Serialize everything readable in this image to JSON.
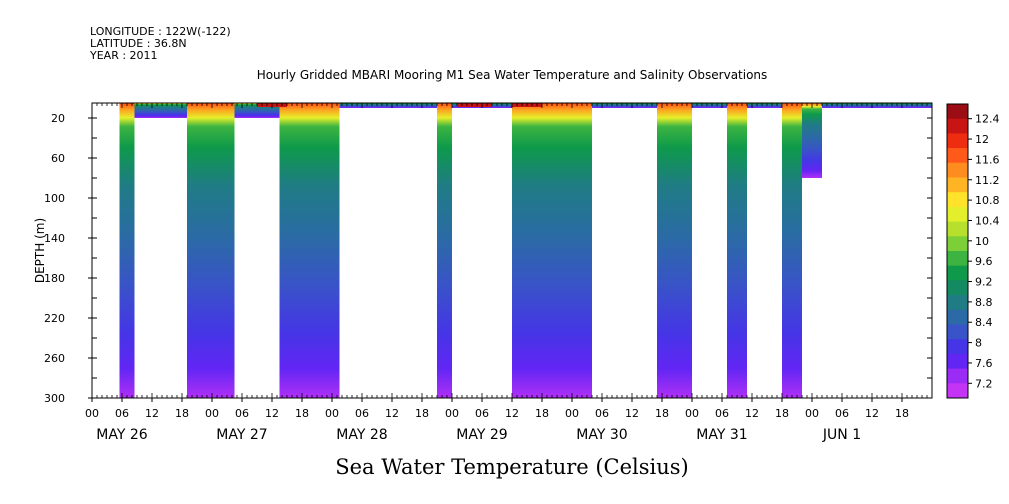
{
  "header": {
    "longitude": "LONGITUDE : 122W(-122)",
    "latitude": "LATITUDE : 36.8N",
    "year": "YEAR : 2011"
  },
  "chart_data": {
    "type": "heatmap",
    "title": "Hourly Gridded MBARI Mooring M1 Sea Water Temperature and Salinity Observations",
    "bottom_title": "Sea Water Temperature (Celsius)",
    "ylabel": "DEPTH (m)",
    "ylim": [
      300,
      5
    ],
    "y_ticks": [
      20,
      60,
      100,
      140,
      180,
      220,
      260,
      300
    ],
    "x_hour_ticks": [
      "00",
      "06",
      "12",
      "18",
      "00",
      "06",
      "12",
      "18",
      "00",
      "06",
      "12",
      "18",
      "00",
      "06",
      "12",
      "18",
      "00",
      "06",
      "12",
      "18",
      "00",
      "06",
      "12",
      "18",
      "00",
      "06",
      "12",
      "18"
    ],
    "x_day_labels": [
      "MAY 26",
      "MAY 27",
      "MAY 28",
      "MAY 29",
      "MAY 30",
      "MAY 31",
      "JUN  1"
    ],
    "x_range_hours": [
      0,
      168
    ],
    "colorbar_levels": [
      "12.4",
      "12",
      "11.6",
      "11.2",
      "10.8",
      "10.4",
      "10",
      "9.6",
      "9.2",
      "8.8",
      "8.4",
      "8",
      "7.6",
      "7.2"
    ],
    "colorbar_colors": [
      "#9b0c14",
      "#c81412",
      "#ee2c10",
      "#ff5a1a",
      "#ff8c1e",
      "#ffb424",
      "#ffe22a",
      "#e2ef2a",
      "#b6e02c",
      "#7ccf36",
      "#3db441",
      "#0e9a4a",
      "#138a62",
      "#1f7c84",
      "#2b6aa6",
      "#3953c8",
      "#4535e6",
      "#6226f4",
      "#9a2cf6",
      "#c434f4"
    ],
    "temperature_profile": {
      "depths_m": [
        10,
        20,
        40,
        60,
        80,
        100,
        140,
        180,
        220,
        260,
        300
      ],
      "temp_c": [
        11.4,
        10.6,
        9.4,
        8.9,
        8.7,
        8.5,
        8.3,
        8.0,
        7.8,
        7.5,
        7.3
      ]
    },
    "data_segments_hours": [
      {
        "start": 5.5,
        "end": 8.5,
        "top_m": 5,
        "bottom_m": 300
      },
      {
        "start": 8.5,
        "end": 19,
        "top_m": 5,
        "bottom_m": 20
      },
      {
        "start": 19,
        "end": 28.5,
        "top_m": 5,
        "bottom_m": 300
      },
      {
        "start": 28.5,
        "end": 37.5,
        "top_m": 5,
        "bottom_m": 20
      },
      {
        "start": 37.5,
        "end": 49.5,
        "top_m": 5,
        "bottom_m": 300
      },
      {
        "start": 49.5,
        "end": 69,
        "top_m": 5,
        "bottom_m": 10
      },
      {
        "start": 69,
        "end": 72,
        "top_m": 5,
        "bottom_m": 300
      },
      {
        "start": 72,
        "end": 84,
        "top_m": 5,
        "bottom_m": 10
      },
      {
        "start": 84,
        "end": 100,
        "top_m": 5,
        "bottom_m": 300
      },
      {
        "start": 100,
        "end": 113,
        "top_m": 5,
        "bottom_m": 10
      },
      {
        "start": 113,
        "end": 120,
        "top_m": 5,
        "bottom_m": 300
      },
      {
        "start": 120,
        "end": 127,
        "top_m": 5,
        "bottom_m": 10
      },
      {
        "start": 127,
        "end": 131,
        "top_m": 5,
        "bottom_m": 300
      },
      {
        "start": 131,
        "end": 138,
        "top_m": 5,
        "bottom_m": 10
      },
      {
        "start": 138,
        "end": 142,
        "top_m": 5,
        "bottom_m": 300
      },
      {
        "start": 142,
        "end": 146,
        "top_m": 5,
        "bottom_m": 80
      },
      {
        "start": 146,
        "end": 168,
        "top_m": 5,
        "bottom_m": 10
      }
    ]
  }
}
